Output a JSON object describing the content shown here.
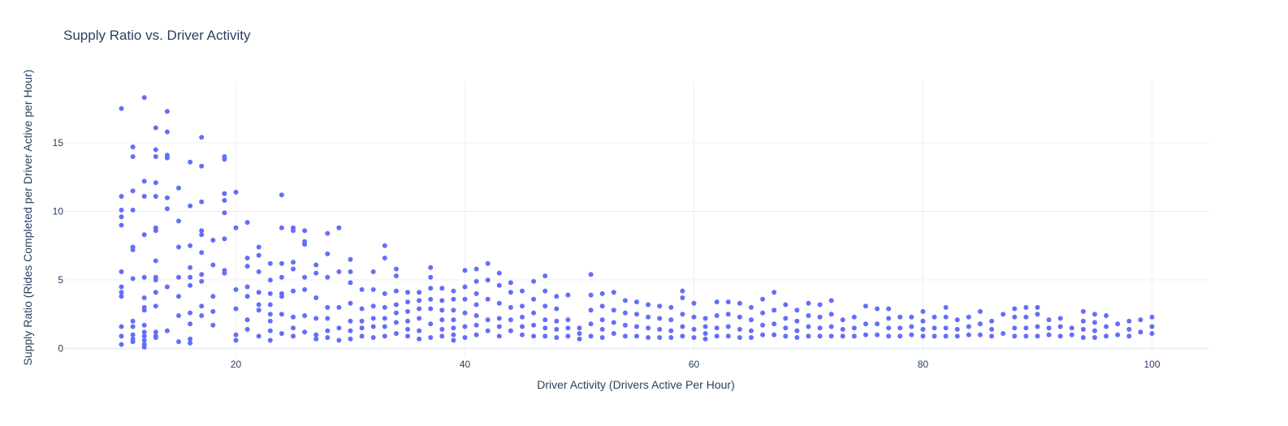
{
  "colors": {
    "marker": "#636efa",
    "text": "#2a3f5f",
    "grid": "#ebf0f8"
  },
  "chart_data": {
    "type": "scatter",
    "title": "Supply Ratio vs. Driver Activity",
    "xlabel": "Driver Activity (Drivers Active Per Hour)",
    "ylabel": "Supply Ratio (Rides Completed per Driver Active per Hour)",
    "xlim": [
      5,
      105
    ],
    "ylim": [
      -0.5,
      19.5
    ],
    "xticks": [
      20,
      40,
      60,
      80,
      100
    ],
    "yticks": [
      0,
      5,
      10,
      15
    ],
    "grid": true,
    "legend": "none",
    "series": [
      {
        "x": [
          10,
          10,
          10,
          10,
          10,
          10,
          10,
          10,
          10,
          10,
          10,
          10,
          11,
          11,
          11,
          11,
          11,
          11,
          11,
          11,
          11,
          11,
          11,
          11,
          12,
          12,
          12,
          12,
          12,
          12,
          12,
          12,
          12,
          12,
          12,
          12,
          12,
          12,
          13,
          13,
          13,
          13,
          13,
          13,
          13,
          13,
          13,
          13,
          13,
          13,
          13,
          13,
          13,
          14,
          14,
          14,
          14,
          14,
          14,
          14,
          14,
          15,
          15,
          15,
          15,
          15,
          15,
          15,
          16,
          16,
          16,
          16,
          16,
          16,
          16,
          16,
          16,
          16,
          17,
          17,
          17,
          17,
          17,
          17,
          17,
          17,
          17,
          17,
          18,
          18,
          18,
          18,
          18,
          19,
          19,
          19,
          19,
          19,
          19,
          19,
          19,
          20,
          20,
          20,
          20,
          20,
          20,
          21,
          21,
          21,
          21,
          21,
          21,
          21,
          22,
          22,
          22,
          22,
          22,
          22,
          22,
          23,
          23,
          23,
          23,
          23,
          23,
          23,
          23,
          24,
          24,
          24,
          24,
          24,
          24,
          24,
          24,
          25,
          25,
          25,
          25,
          25,
          25,
          25,
          25,
          26,
          26,
          26,
          26,
          26,
          26,
          26,
          27,
          27,
          27,
          27,
          27,
          27,
          28,
          28,
          28,
          28,
          28,
          28,
          28,
          29,
          29,
          29,
          29,
          29,
          30,
          30,
          30,
          30,
          30,
          30,
          30,
          31,
          31,
          31,
          31,
          31,
          32,
          32,
          32,
          32,
          32,
          32,
          33,
          33,
          33,
          33,
          33,
          33,
          33,
          34,
          34,
          34,
          34,
          34,
          34,
          34,
          35,
          35,
          35,
          35,
          35,
          35,
          36,
          36,
          36,
          36,
          36,
          36,
          37,
          37,
          37,
          37,
          37,
          37,
          37,
          38,
          38,
          38,
          38,
          38,
          38,
          39,
          39,
          39,
          39,
          39,
          39,
          39,
          40,
          40,
          40,
          40,
          40,
          40,
          41,
          41,
          41,
          41,
          41,
          41,
          41,
          42,
          42,
          42,
          42,
          42,
          43,
          43,
          43,
          43,
          43,
          43,
          44,
          44,
          44,
          44,
          44,
          45,
          45,
          45,
          45,
          45,
          46,
          46,
          46,
          46,
          46,
          47,
          47,
          47,
          47,
          47,
          47,
          48,
          48,
          48,
          48,
          48,
          49,
          49,
          49,
          49,
          50,
          50,
          50,
          51,
          51,
          51,
          51,
          51,
          52,
          52,
          52,
          52,
          52,
          53,
          53,
          53,
          53,
          54,
          54,
          54,
          54,
          55,
          55,
          55,
          55,
          56,
          56,
          56,
          56,
          57,
          57,
          57,
          57,
          58,
          58,
          58,
          58,
          59,
          59,
          59,
          59,
          59,
          60,
          60,
          60,
          60,
          61,
          61,
          61,
          61,
          62,
          62,
          62,
          62,
          63,
          63,
          63,
          63,
          64,
          64,
          64,
          64,
          65,
          65,
          65,
          65,
          66,
          66,
          66,
          66,
          67,
          67,
          67,
          67,
          68,
          68,
          68,
          68,
          69,
          69,
          69,
          69,
          70,
          70,
          70,
          70,
          71,
          71,
          71,
          71,
          72,
          72,
          72,
          72,
          73,
          73,
          73,
          74,
          74,
          74,
          75,
          75,
          75,
          76,
          76,
          76,
          77,
          77,
          77,
          77,
          78,
          78,
          78,
          79,
          79,
          79,
          80,
          80,
          80,
          80,
          81,
          81,
          81,
          82,
          82,
          82,
          82,
          83,
          83,
          83,
          84,
          84,
          84,
          85,
          85,
          85,
          86,
          86,
          86,
          87,
          87,
          88,
          88,
          88,
          88,
          89,
          89,
          89,
          89,
          90,
          90,
          90,
          90,
          91,
          91,
          91,
          92,
          92,
          92,
          93,
          93,
          94,
          94,
          94,
          94,
          95,
          95,
          95,
          95,
          96,
          96,
          96,
          97,
          97,
          98,
          98,
          98,
          99,
          99,
          100,
          100,
          100
        ],
        "y": [
          17.5,
          11.1,
          10.1,
          9.6,
          9.0,
          5.6,
          4.5,
          4.1,
          3.8,
          1.6,
          0.9,
          0.3,
          14.7,
          14.0,
          11.5,
          10.1,
          7.4,
          7.2,
          5.1,
          2.0,
          1.6,
          1.0,
          0.7,
          0.5,
          18.3,
          12.2,
          11.1,
          8.3,
          5.2,
          3.7,
          3.0,
          2.8,
          1.7,
          1.2,
          0.9,
          0.6,
          0.3,
          0.1,
          16.1,
          14.5,
          14.0,
          12.1,
          11.1,
          8.8,
          8.6,
          6.4,
          5.2,
          5.0,
          4.1,
          3.1,
          1.2,
          0.9,
          0.8,
          17.3,
          15.8,
          14.1,
          13.9,
          11.0,
          10.2,
          4.5,
          1.3,
          11.7,
          9.3,
          7.4,
          5.2,
          3.8,
          2.4,
          0.5,
          13.6,
          10.4,
          7.5,
          5.9,
          5.2,
          4.6,
          2.6,
          1.8,
          0.7,
          0.4,
          15.4,
          13.3,
          10.7,
          8.6,
          8.3,
          7.0,
          5.4,
          4.9,
          3.1,
          2.4,
          7.9,
          6.1,
          3.8,
          2.7,
          1.7,
          14.0,
          13.8,
          11.3,
          10.8,
          9.9,
          8.0,
          5.7,
          5.5,
          11.4,
          8.8,
          4.3,
          2.9,
          1.0,
          0.6,
          9.2,
          6.6,
          6.0,
          4.5,
          3.8,
          2.1,
          1.4,
          7.4,
          6.8,
          5.6,
          4.1,
          3.2,
          2.8,
          0.9,
          6.2,
          5.0,
          4.0,
          3.2,
          2.5,
          2.0,
          1.3,
          0.6,
          11.2,
          8.8,
          6.2,
          5.2,
          4.0,
          3.8,
          2.5,
          1.1,
          8.8,
          8.6,
          6.3,
          5.8,
          4.2,
          2.3,
          1.5,
          0.9,
          8.6,
          7.8,
          7.6,
          5.2,
          4.3,
          2.4,
          1.2,
          6.1,
          5.5,
          3.7,
          2.2,
          1.0,
          0.7,
          8.4,
          6.9,
          5.2,
          3.0,
          2.2,
          1.3,
          0.8,
          8.8,
          5.6,
          3.0,
          1.5,
          0.6,
          6.5,
          5.6,
          4.8,
          3.3,
          2.0,
          1.3,
          0.7,
          4.3,
          2.9,
          2.0,
          1.5,
          0.9,
          5.6,
          4.3,
          3.1,
          2.2,
          1.6,
          0.8,
          7.5,
          6.6,
          4.0,
          3.0,
          2.2,
          1.6,
          0.9,
          5.8,
          5.3,
          4.2,
          3.2,
          2.6,
          1.9,
          1.1,
          4.1,
          3.4,
          2.7,
          2.0,
          1.4,
          0.9,
          4.1,
          3.5,
          2.9,
          2.2,
          1.3,
          0.7,
          5.9,
          5.2,
          4.4,
          3.6,
          2.9,
          1.8,
          0.8,
          4.4,
          3.5,
          2.8,
          2.1,
          1.4,
          0.9,
          4.2,
          3.6,
          2.8,
          2.1,
          1.5,
          1.0,
          0.6,
          5.7,
          4.5,
          3.6,
          2.6,
          1.6,
          0.8,
          5.8,
          4.9,
          4.0,
          3.2,
          2.4,
          1.7,
          1.0,
          6.2,
          5.0,
          3.6,
          2.1,
          1.3,
          5.5,
          4.6,
          3.3,
          2.2,
          1.6,
          0.9,
          4.8,
          4.1,
          3.0,
          2.1,
          1.3,
          4.2,
          3.1,
          2.3,
          1.6,
          1.0,
          4.9,
          3.6,
          2.6,
          1.7,
          0.9,
          5.3,
          4.2,
          3.1,
          2.1,
          1.5,
          0.9,
          3.8,
          2.9,
          2.0,
          1.4,
          0.8,
          3.9,
          2.1,
          1.5,
          0.9,
          1.5,
          1.1,
          0.7,
          5.4,
          3.9,
          2.8,
          1.8,
          0.9,
          4.0,
          3.1,
          2.1,
          1.4,
          0.8,
          4.1,
          2.8,
          1.9,
          1.1,
          3.5,
          2.6,
          1.7,
          0.9,
          3.4,
          2.5,
          1.6,
          0.9,
          3.2,
          2.3,
          1.5,
          0.8,
          3.1,
          2.2,
          1.4,
          0.8,
          3.0,
          2.1,
          1.3,
          0.8,
          4.2,
          3.7,
          2.5,
          1.6,
          0.9,
          3.3,
          2.3,
          1.4,
          0.8,
          2.2,
          1.6,
          1.1,
          0.7,
          3.4,
          2.4,
          1.5,
          0.9,
          3.4,
          2.5,
          1.6,
          0.9,
          3.3,
          2.3,
          1.4,
          0.8,
          3.0,
          2.1,
          1.3,
          0.8,
          3.6,
          2.6,
          1.7,
          1.0,
          4.1,
          2.8,
          1.8,
          1.0,
          3.2,
          2.2,
          1.5,
          0.9,
          2.8,
          2.0,
          1.3,
          0.8,
          3.3,
          2.4,
          1.6,
          0.9,
          3.2,
          2.3,
          1.5,
          0.9,
          3.5,
          2.5,
          1.6,
          0.9,
          2.1,
          1.4,
          0.9,
          2.3,
          1.5,
          0.9,
          3.1,
          1.8,
          1.0,
          2.9,
          1.8,
          1.0,
          2.9,
          2.2,
          1.5,
          0.9,
          2.3,
          1.5,
          0.9,
          2.3,
          1.6,
          1.0,
          2.7,
          2.0,
          1.4,
          0.9,
          2.3,
          1.5,
          0.9,
          3.0,
          2.3,
          1.5,
          0.9,
          2.1,
          1.4,
          0.9,
          2.3,
          1.6,
          1.0,
          2.7,
          1.8,
          1.0,
          2.0,
          1.4,
          0.9,
          2.5,
          1.1,
          2.9,
          2.3,
          1.5,
          0.9,
          3.0,
          2.3,
          1.5,
          0.9,
          3.0,
          2.5,
          1.6,
          0.9,
          2.1,
          1.5,
          1.0,
          2.2,
          1.6,
          0.9,
          1.5,
          1.0,
          2.7,
          2.0,
          1.4,
          0.8,
          2.5,
          1.9,
          1.3,
          0.8,
          2.4,
          1.6,
          0.9,
          1.8,
          1.0,
          2.0,
          1.4,
          0.9,
          2.1,
          1.2,
          2.3,
          1.6,
          1.1
        ]
      }
    ]
  }
}
